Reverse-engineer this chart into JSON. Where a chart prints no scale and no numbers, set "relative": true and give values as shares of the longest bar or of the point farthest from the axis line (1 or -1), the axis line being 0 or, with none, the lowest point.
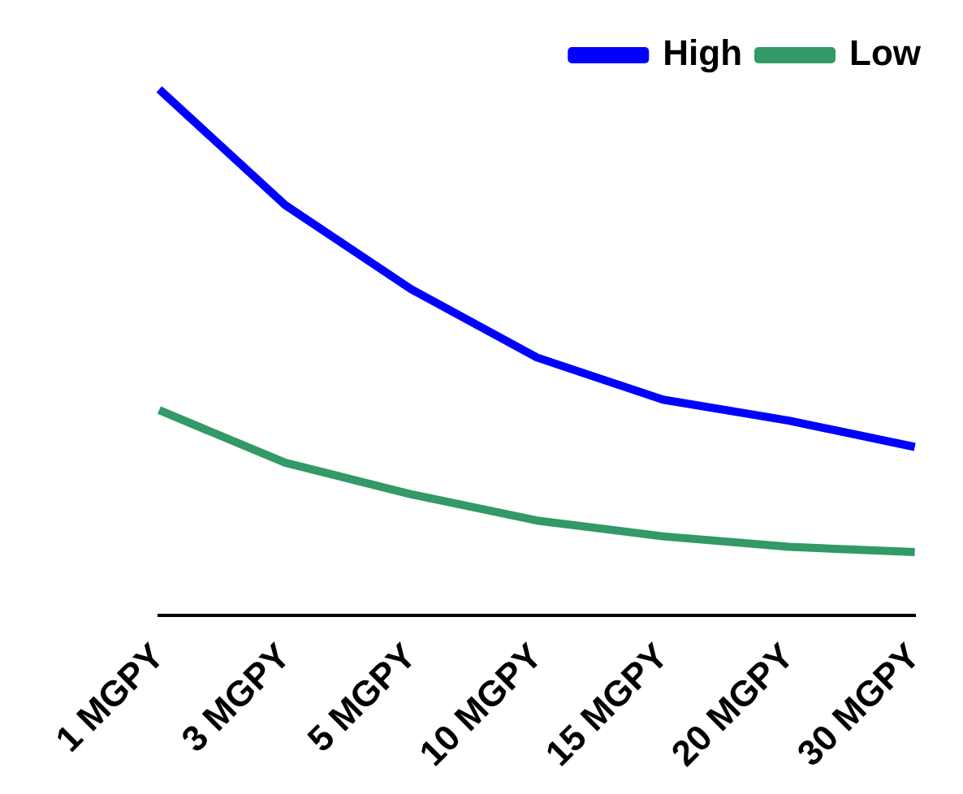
{
  "chart_data": {
    "type": "line",
    "relative": true,
    "legend": "top right",
    "grid": false,
    "marker": "none",
    "line_style": "solid",
    "categories": [
      "1 MGPY",
      "3 MGPY",
      "5 MGPY",
      "10 MGPY",
      "15 MGPY",
      "20 MGPY",
      "30 MGPY"
    ],
    "series": [
      {
        "name": "High",
        "color": "#0000ff",
        "values": [
          1,
          0.78,
          0.62,
          0.49,
          0.41,
          0.37,
          0.32
        ]
      },
      {
        "name": "Low",
        "color": "#339966",
        "values": [
          0.39,
          0.29,
          0.23,
          0.18,
          0.15,
          0.13,
          0.12
        ]
      }
    ]
  }
}
